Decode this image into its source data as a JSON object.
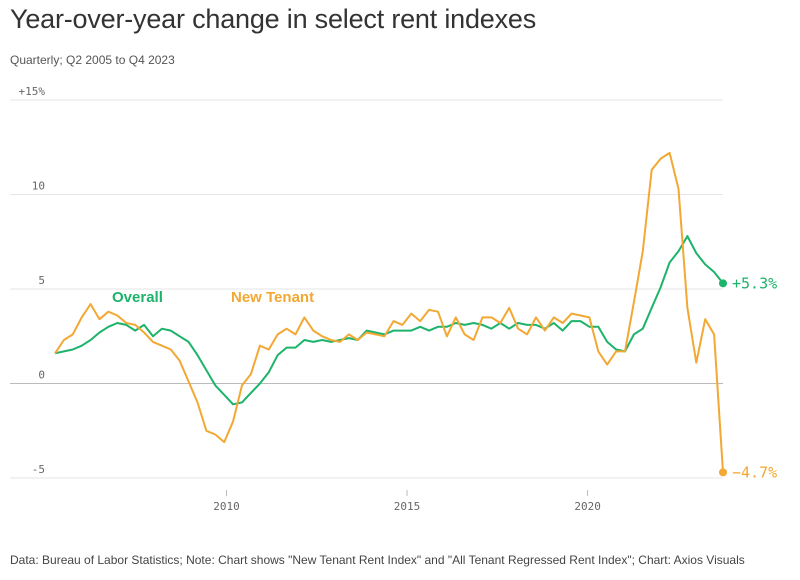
{
  "header": {
    "title": "Year-over-year change in select rent indexes",
    "subtitle": "Quarterly; Q2 2005 to Q4 2023"
  },
  "footer": {
    "source": "Data: Bureau of Labor Statistics; Note: Chart shows \"New Tenant Rent Index\" and \"All Tenant Regressed Rent Index\"; Chart: Axios Visuals"
  },
  "colors": {
    "overall": "#1db36b",
    "new_tenant": "#f2a833",
    "grid": "#e6e6e6",
    "zero": "#bbbbbb"
  },
  "chart_data": {
    "type": "line",
    "title": "Year-over-year change in select rent indexes",
    "subtitle": "Quarterly; Q2 2005 to Q4 2023",
    "xlabel": "",
    "ylabel": "",
    "x_start": "2005 Q2",
    "x_end": "2023 Q4",
    "xlim": [
      2005.25,
      2023.75
    ],
    "ylim": [
      -5,
      15
    ],
    "y_ticks": [
      {
        "value": 15,
        "label": "+15%"
      },
      {
        "value": 10,
        "label": "10"
      },
      {
        "value": 5,
        "label": "5"
      },
      {
        "value": 0,
        "label": "0"
      },
      {
        "value": -5,
        "label": "-5"
      }
    ],
    "x_ticks": [
      {
        "value": 2010,
        "label": "2010"
      },
      {
        "value": 2015,
        "label": "2015"
      },
      {
        "value": 2020,
        "label": "2020"
      }
    ],
    "grid": true,
    "series": [
      {
        "name": "Overall",
        "key": "overall",
        "end_label": "+5.3%",
        "values": [
          1.6,
          1.7,
          1.8,
          2.0,
          2.3,
          2.7,
          3.0,
          3.2,
          3.1,
          2.8,
          3.1,
          2.5,
          2.9,
          2.8,
          2.5,
          2.2,
          1.5,
          0.7,
          -0.1,
          -0.6,
          -1.1,
          -1.0,
          -0.5,
          0.0,
          0.6,
          1.5,
          1.9,
          1.9,
          2.3,
          2.2,
          2.3,
          2.2,
          2.3,
          2.4,
          2.3,
          2.8,
          2.7,
          2.6,
          2.8,
          2.8,
          2.8,
          3.0,
          2.8,
          3.0,
          3.0,
          3.2,
          3.1,
          3.2,
          3.1,
          2.9,
          3.2,
          2.9,
          3.2,
          3.1,
          3.1,
          2.9,
          3.2,
          2.8,
          3.3,
          3.3,
          3.0,
          3.0,
          2.2,
          1.8,
          1.7,
          2.6,
          2.9,
          4.0,
          5.1,
          6.4,
          7.0,
          7.8,
          6.9,
          6.3,
          5.9,
          5.3
        ]
      },
      {
        "name": "New Tenant",
        "key": "new_tenant",
        "end_label": "−4.7%",
        "values": [
          1.6,
          2.3,
          2.6,
          3.5,
          4.2,
          3.4,
          3.8,
          3.6,
          3.2,
          3.1,
          2.7,
          2.2,
          2.0,
          1.8,
          1.2,
          0.1,
          -1.0,
          -2.5,
          -2.7,
          -3.1,
          -2.0,
          -0.1,
          0.5,
          2.0,
          1.8,
          2.6,
          2.9,
          2.6,
          3.5,
          2.8,
          2.5,
          2.3,
          2.2,
          2.6,
          2.3,
          2.7,
          2.6,
          2.5,
          3.3,
          3.1,
          3.7,
          3.3,
          3.9,
          3.8,
          2.5,
          3.5,
          2.6,
          2.3,
          3.5,
          3.5,
          3.2,
          4.0,
          2.9,
          2.6,
          3.5,
          2.8,
          3.5,
          3.2,
          3.7,
          3.6,
          3.5,
          1.7,
          1.0,
          1.7,
          1.7,
          4.3,
          7.0,
          11.3,
          11.9,
          12.2,
          10.3,
          4.0,
          1.1,
          3.4,
          2.6,
          -4.7
        ]
      }
    ]
  }
}
